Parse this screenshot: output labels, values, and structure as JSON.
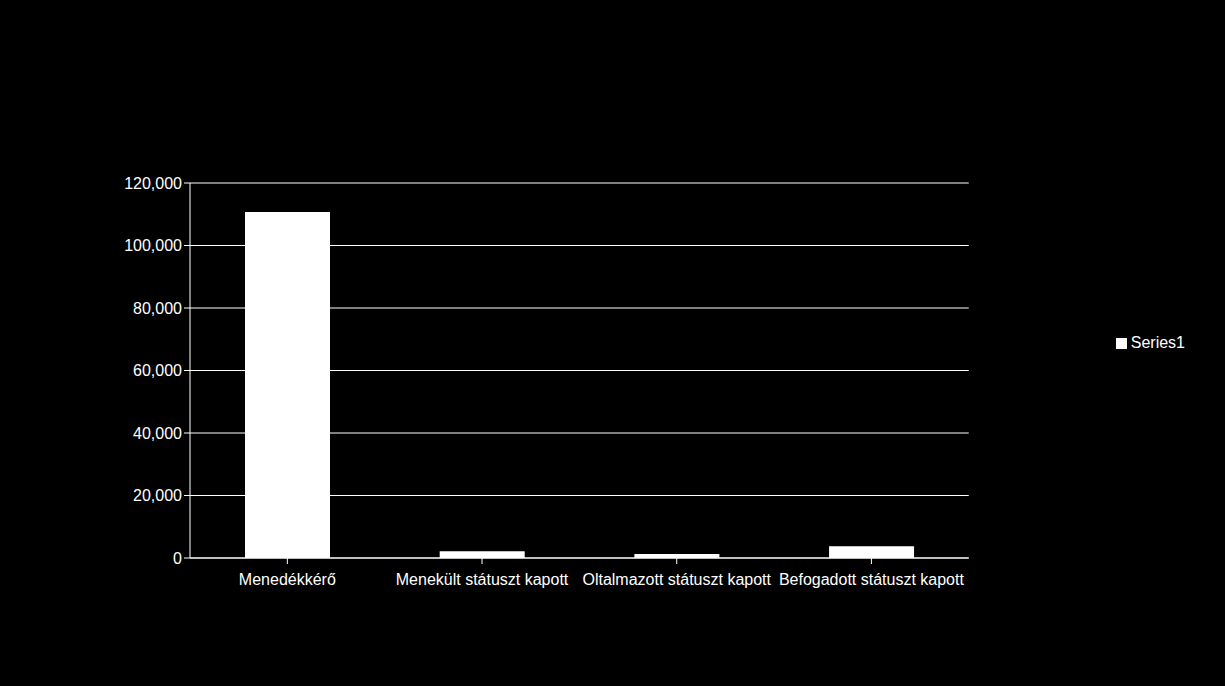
{
  "chart_data": {
    "type": "bar",
    "categories": [
      "Menedékkérő",
      "Menekült státuszt kapott",
      "Oltalmazott státuszt kapott",
      "Befogadott státuszt kapott"
    ],
    "series": [
      {
        "name": "Series1",
        "color": "#ffffff",
        "values": [
          110700,
          2200,
          1300,
          3800
        ]
      }
    ],
    "ylim": [
      0,
      120000
    ],
    "yticks": [
      0,
      {
        "value": 20000,
        "label": "20,000"
      },
      {
        "value": 40000,
        "label": "40,000"
      },
      {
        "value": 60000,
        "label": "60,000"
      },
      {
        "value": 80000,
        "label": "80,000"
      },
      {
        "value": 100000,
        "label": "100,000"
      },
      {
        "value": 120000,
        "label": "120,000"
      }
    ],
    "grid": true,
    "legend": "right"
  }
}
